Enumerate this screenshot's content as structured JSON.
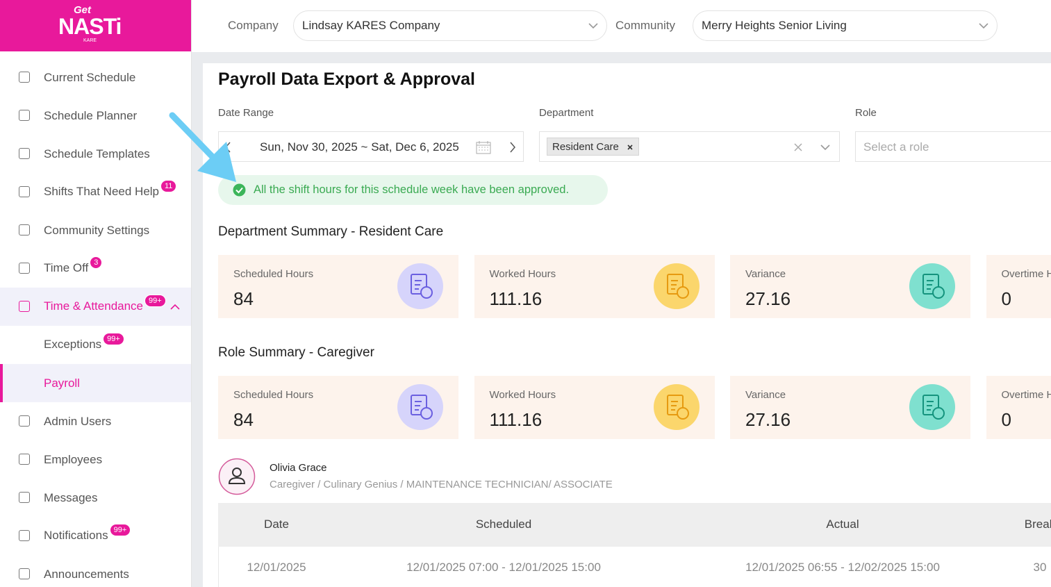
{
  "logo": {
    "top": "Get",
    "main": "NASTi",
    "sub": "KARE"
  },
  "sidebar": {
    "items": [
      {
        "label": "Current Schedule"
      },
      {
        "label": "Schedule Planner"
      },
      {
        "label": "Schedule Templates"
      },
      {
        "label": "Shifts That Need Help",
        "badge": "11"
      },
      {
        "label": "Community Settings"
      },
      {
        "label": "Time Off",
        "badge": "3"
      },
      {
        "label": "Time & Attendance",
        "badge": "99+"
      },
      {
        "label": "Exceptions",
        "badge": "99+"
      },
      {
        "label": "Payroll"
      },
      {
        "label": "Admin Users"
      },
      {
        "label": "Employees"
      },
      {
        "label": "Messages"
      },
      {
        "label": "Notifications",
        "badge": "99+"
      },
      {
        "label": "Announcements"
      }
    ]
  },
  "header": {
    "company_label": "Company",
    "company_value": "Lindsay KARES Company",
    "community_label": "Community",
    "community_value": "Merry Heights Senior Living"
  },
  "page": {
    "title": "Payroll Data Export & Approval",
    "filters": {
      "date_label": "Date Range",
      "date_value": "Sun, Nov 30, 2025 ~ Sat, Dec 6, 2025",
      "department_label": "Department",
      "department_tag": "Resident Care",
      "role_label": "Role",
      "role_placeholder": "Select a role"
    },
    "alert": "All the shift hours for this schedule week have been approved.",
    "summaries": [
      {
        "title": "Department Summary - Resident Care",
        "cards": [
          {
            "label": "Scheduled Hours",
            "value": 84
          },
          {
            "label": "Worked Hours",
            "value": 111.16
          },
          {
            "label": "Variance",
            "value": 27.16
          },
          {
            "label": "Overtime Hours",
            "value": 0
          }
        ]
      },
      {
        "title": "Role Summary - Caregiver",
        "cards": [
          {
            "label": "Scheduled Hours",
            "value": 84
          },
          {
            "label": "Worked Hours",
            "value": 111.16
          },
          {
            "label": "Variance",
            "value": 27.16
          },
          {
            "label": "Overtime Hours",
            "value": 0
          }
        ]
      }
    ],
    "employee": {
      "name": "Olivia Grace",
      "roles": "Caregiver / Culinary Genius / MAINTENANCE TECHNICIAN/ ASSOCIATE"
    },
    "table": {
      "headers": [
        "Date",
        "Scheduled",
        "Actual",
        "Break"
      ],
      "rows": [
        [
          "12/01/2025",
          "12/01/2025 07:00 - 12/01/2025 15:00",
          "12/01/2025 06:55 - 12/02/2025 15:00",
          "30"
        ]
      ]
    }
  }
}
